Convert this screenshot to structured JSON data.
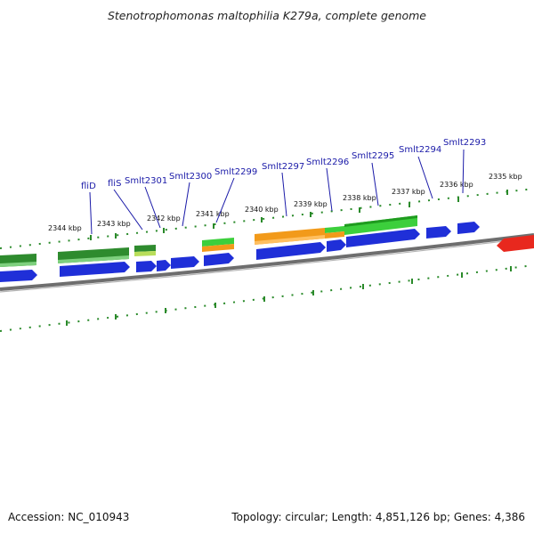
{
  "title": "Stenotrophomonas maltophilia K279a, complete genome",
  "colors": {
    "cds_forward": "#1f2fd8",
    "rrna_dark_green": "#2e8b2e",
    "gene_light_green": "#3ccf3c",
    "orange": "#f29a1a",
    "red": "#e8281e",
    "backbone": "#7a7a7a",
    "ticks": "#2a8a2a"
  },
  "kbp_ticks": [
    "2344 kbp",
    "2343 kbp",
    "2342 kbp",
    "2341 kbp",
    "2340 kbp",
    "2339 kbp",
    "2338 kbp",
    "2337 kbp",
    "2336 kbp",
    "2335 kbp"
  ],
  "gene_labels": [
    "fliD",
    "fliS",
    "Smlt2301",
    "Smlt2300",
    "Smlt2299",
    "Smlt2297",
    "Smlt2296",
    "Smlt2295",
    "Smlt2294",
    "Smlt2293"
  ],
  "footer": {
    "accession": "Accession: NC_010943",
    "summary": "Topology: circular; Length: 4,851,126 bp; Genes: 4,386"
  }
}
